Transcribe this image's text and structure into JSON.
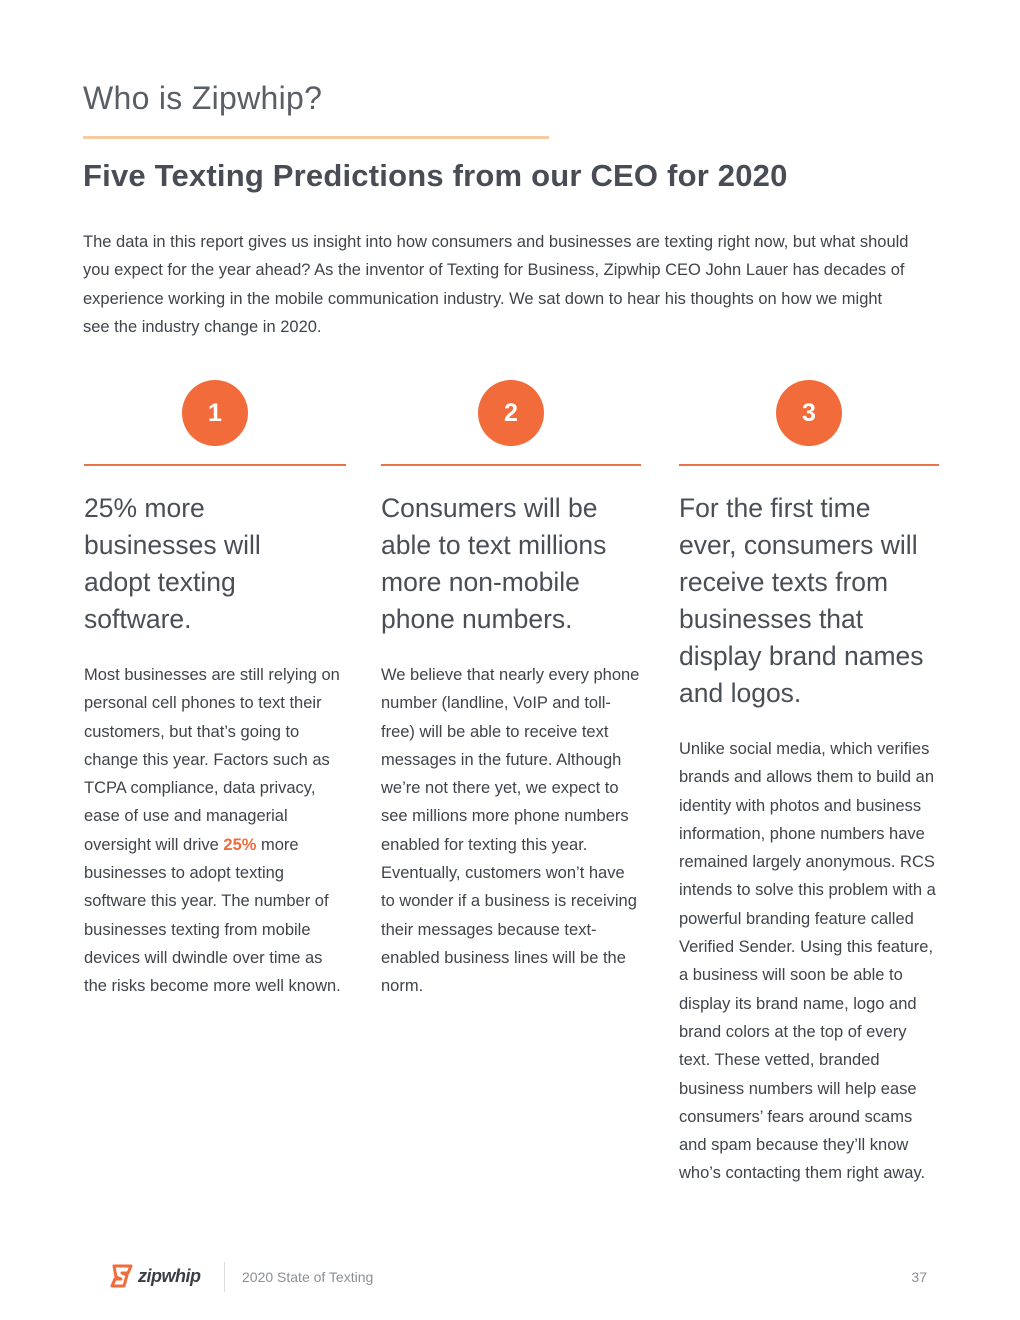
{
  "header": {
    "section": "Who is Zipwhip?",
    "title": "Five Texting Predictions from our CEO for 2020"
  },
  "intro": "The data in this report gives us insight into how consumers and businesses are texting right now, but what should you expect for the year ahead? As the inventor of Texting for Business, Zipwhip CEO John Lauer has decades of experience working in the mobile communication industry. We sat down to hear his thoughts on how we might see the industry change in 2020.",
  "columns": [
    {
      "number": "1",
      "heading": "25% more businesses will adopt texting software.",
      "body_before": "Most businesses are still relying on personal cell phones to text their customers, but that’s going to change this year. Factors such as TCPA compliance, data privacy, ease of use and managerial oversight will drive ",
      "highlight": "25%",
      "body_after": " more businesses to adopt texting software this year. The number of businesses texting from mobile devices will dwindle over time as the risks become more well known."
    },
    {
      "number": "2",
      "heading": "Consumers will be able to text millions more non-mobile phone numbers.",
      "body": "We believe that nearly every phone number (landline, VoIP and toll-free) will be able to receive text messages in the future. Although we’re not there yet, we expect to see millions more phone numbers enabled for texting this year. Eventually, customers won’t have to wonder if a business is receiving their messages because text-enabled business lines will be the norm."
    },
    {
      "number": "3",
      "heading": "For the first time ever, consumers will receive texts from businesses that display brand names and logos.",
      "body": "Unlike social media, which verifies brands and allows them to build an identity with photos and business information, phone numbers have remained largely anonymous. RCS intends to solve this problem with a powerful branding feature called Verified Sender. Using this feature, a business will soon be able to display its brand name, logo and brand colors at the top of every text. These vetted, branded business numbers will help ease consumers’ fears around scams and spam because they’ll know who’s contacting them right away."
    }
  ],
  "footer": {
    "logo": "zipwhip",
    "report": "2020 State of Texting",
    "page": "37"
  }
}
